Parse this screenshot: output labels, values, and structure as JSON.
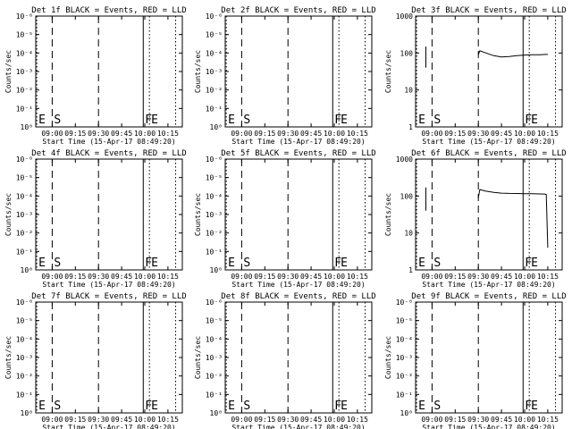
{
  "chart_data": [
    {
      "type": "line",
      "title": "Det 1f BLACK = Events, RED = LLD",
      "ylabel": "Counts/sec",
      "xlabel": "Start Time (15-Apr-17 08:49:20)",
      "x_ticks": [
        "09:00",
        "09:15",
        "09:30",
        "09:45",
        "10:00",
        "10:15"
      ],
      "y_scale": "log",
      "y_ticks": [
        "10⁰",
        "10⁻¹",
        "10⁻²",
        "10⁻³",
        "10⁻⁴",
        "10⁻⁵",
        "10⁻⁶"
      ],
      "markers": [
        {
          "label": "E",
          "time": "08:50",
          "style": "dotted"
        },
        {
          "label": "S",
          "time": "09:00",
          "style": "dashed"
        },
        {
          "label": "",
          "time": "09:30",
          "style": "dashed"
        },
        {
          "label": "F",
          "time": "09:59",
          "style": "solid"
        },
        {
          "label": "E",
          "time": "10:03",
          "style": "dotted"
        },
        {
          "label": "",
          "time": "10:20",
          "style": "dotted"
        }
      ],
      "series": []
    },
    {
      "type": "line",
      "title": "Det 2f BLACK = Events, RED = LLD",
      "ylabel": "Counts/sec",
      "xlabel": "Start Time (15-Apr-17 08:49:20)",
      "x_ticks": [
        "09:00",
        "09:15",
        "09:30",
        "09:45",
        "10:00",
        "10:15"
      ],
      "y_scale": "log",
      "y_ticks": [
        "10⁰",
        "10⁻¹",
        "10⁻²",
        "10⁻³",
        "10⁻⁴",
        "10⁻⁵",
        "10⁻⁶"
      ],
      "markers": [
        {
          "label": "E",
          "time": "08:50",
          "style": "dotted"
        },
        {
          "label": "S",
          "time": "09:00",
          "style": "dashed"
        },
        {
          "label": "",
          "time": "09:30",
          "style": "dashed"
        },
        {
          "label": "F",
          "time": "09:59",
          "style": "solid"
        },
        {
          "label": "E",
          "time": "10:03",
          "style": "dotted"
        },
        {
          "label": "",
          "time": "10:20",
          "style": "dotted"
        }
      ],
      "series": []
    },
    {
      "type": "line",
      "title": "Det 3f BLACK = Events, RED = LLD",
      "ylabel": "Counts/sec",
      "xlabel": "Start Time (15-Apr-17 08:49:20)",
      "x_ticks": [
        "09:00",
        "09:15",
        "09:30",
        "09:45",
        "10:00",
        "10:15"
      ],
      "y_scale": "log",
      "y_ticks": [
        "1",
        "10",
        "100",
        "1000"
      ],
      "markers": [
        {
          "label": "E",
          "time": "08:50",
          "style": "dotted"
        },
        {
          "label": "S",
          "time": "09:00",
          "style": "dashed"
        },
        {
          "label": "",
          "time": "09:30",
          "style": "dashed"
        },
        {
          "label": "F",
          "time": "09:59",
          "style": "solid"
        },
        {
          "label": "E",
          "time": "10:03",
          "style": "dotted"
        },
        {
          "label": "",
          "time": "10:20",
          "style": "dotted"
        }
      ],
      "series": [
        {
          "values": [
            [
              "08:56",
              40
            ],
            [
              "08:56",
              150
            ],
            [
              "08:56",
              90
            ]
          ]
        },
        {
          "values": [
            [
              "09:30",
              90
            ],
            [
              "09:31",
              115
            ],
            [
              "09:35",
              100
            ],
            [
              "09:40",
              85
            ],
            [
              "09:45",
              78
            ],
            [
              "09:50",
              80
            ],
            [
              "09:55",
              85
            ],
            [
              "10:00",
              88
            ],
            [
              "10:05",
              90
            ],
            [
              "10:10",
              90
            ],
            [
              "10:15",
              92
            ]
          ]
        }
      ]
    },
    {
      "type": "line",
      "title": "Det 4f BLACK = Events, RED = LLD",
      "ylabel": "Counts/sec",
      "xlabel": "Start Time (15-Apr-17 08:49:20)",
      "x_ticks": [
        "09:00",
        "09:15",
        "09:30",
        "09:45",
        "10:00",
        "10:15"
      ],
      "y_scale": "log",
      "y_ticks": [
        "10⁰",
        "10⁻¹",
        "10⁻²",
        "10⁻³",
        "10⁻⁴",
        "10⁻⁵",
        "10⁻⁶"
      ],
      "markers": [
        {
          "label": "E",
          "time": "08:50",
          "style": "dotted"
        },
        {
          "label": "S",
          "time": "09:00",
          "style": "dashed"
        },
        {
          "label": "",
          "time": "09:30",
          "style": "dashed"
        },
        {
          "label": "F",
          "time": "09:59",
          "style": "solid"
        },
        {
          "label": "E",
          "time": "10:03",
          "style": "dotted"
        },
        {
          "label": "",
          "time": "10:20",
          "style": "dotted"
        }
      ],
      "series": []
    },
    {
      "type": "line",
      "title": "Det 5f BLACK = Events, RED = LLD",
      "ylabel": "Counts/sec",
      "xlabel": "Start Time (15-Apr-17 08:49:20)",
      "x_ticks": [
        "09:00",
        "09:15",
        "09:30",
        "09:45",
        "10:00",
        "10:15"
      ],
      "y_scale": "log",
      "y_ticks": [
        "10⁰",
        "10⁻¹",
        "10⁻²",
        "10⁻³",
        "10⁻⁴",
        "10⁻⁵",
        "10⁻⁶"
      ],
      "markers": [
        {
          "label": "E",
          "time": "08:50",
          "style": "dotted"
        },
        {
          "label": "S",
          "time": "09:00",
          "style": "dashed"
        },
        {
          "label": "",
          "time": "09:30",
          "style": "dashed"
        },
        {
          "label": "F",
          "time": "09:59",
          "style": "solid"
        },
        {
          "label": "E",
          "time": "10:03",
          "style": "dotted"
        },
        {
          "label": "",
          "time": "10:20",
          "style": "dotted"
        }
      ],
      "series": []
    },
    {
      "type": "line",
      "title": "Det 6f BLACK = Events, RED = LLD",
      "ylabel": "Counts/sec",
      "xlabel": "Start Time (15-Apr-17 08:49:20)",
      "x_ticks": [
        "09:00",
        "09:15",
        "09:30",
        "09:45",
        "10:00",
        "10:15"
      ],
      "y_scale": "log",
      "y_ticks": [
        "1",
        "10",
        "100",
        "1000"
      ],
      "markers": [
        {
          "label": "E",
          "time": "08:50",
          "style": "dotted"
        },
        {
          "label": "S",
          "time": "09:00",
          "style": "dashed"
        },
        {
          "label": "",
          "time": "09:30",
          "style": "dashed"
        },
        {
          "label": "F",
          "time": "09:59",
          "style": "solid"
        },
        {
          "label": "E",
          "time": "10:03",
          "style": "dotted"
        },
        {
          "label": "",
          "time": "10:20",
          "style": "dotted"
        }
      ],
      "series": [
        {
          "values": [
            [
              "08:56",
              40
            ],
            [
              "08:56",
              170
            ],
            [
              "08:56",
              90
            ]
          ]
        },
        {
          "values": [
            [
              "09:30",
              90
            ],
            [
              "09:31",
              150
            ],
            [
              "09:35",
              135
            ],
            [
              "09:40",
              125
            ],
            [
              "09:45",
              120
            ],
            [
              "09:50",
              118
            ],
            [
              "09:55",
              117
            ],
            [
              "10:00",
              116
            ],
            [
              "10:05",
              115
            ],
            [
              "10:10",
              114
            ],
            [
              "10:13",
              113
            ],
            [
              "10:14",
              110
            ],
            [
              "10:15",
              4
            ]
          ]
        }
      ]
    },
    {
      "type": "line",
      "title": "Det 7f BLACK = Events, RED = LLD",
      "ylabel": "Counts/sec",
      "xlabel": "Start Time (15-Apr-17 08:49:20)",
      "x_ticks": [
        "09:00",
        "09:15",
        "09:30",
        "09:45",
        "10:00",
        "10:15"
      ],
      "y_scale": "log",
      "y_ticks": [
        "10⁰",
        "10⁻¹",
        "10⁻²",
        "10⁻³",
        "10⁻⁴",
        "10⁻⁵",
        "10⁻⁶"
      ],
      "markers": [
        {
          "label": "E",
          "time": "08:50",
          "style": "dotted"
        },
        {
          "label": "S",
          "time": "09:00",
          "style": "dashed"
        },
        {
          "label": "",
          "time": "09:30",
          "style": "dashed"
        },
        {
          "label": "F",
          "time": "09:59",
          "style": "solid"
        },
        {
          "label": "E",
          "time": "10:03",
          "style": "dotted"
        },
        {
          "label": "",
          "time": "10:20",
          "style": "dotted"
        }
      ],
      "series": []
    },
    {
      "type": "line",
      "title": "Det 8f BLACK = Events, RED = LLD",
      "ylabel": "Counts/sec",
      "xlabel": "Start Time (15-Apr-17 08:49:20)",
      "x_ticks": [
        "09:00",
        "09:15",
        "09:30",
        "09:45",
        "10:00",
        "10:15"
      ],
      "y_scale": "log",
      "y_ticks": [
        "10⁰",
        "10⁻¹",
        "10⁻²",
        "10⁻³",
        "10⁻⁴",
        "10⁻⁵",
        "10⁻⁶"
      ],
      "markers": [
        {
          "label": "E",
          "time": "08:50",
          "style": "dotted"
        },
        {
          "label": "S",
          "time": "09:00",
          "style": "dashed"
        },
        {
          "label": "",
          "time": "09:30",
          "style": "dashed"
        },
        {
          "label": "F",
          "time": "09:59",
          "style": "solid"
        },
        {
          "label": "E",
          "time": "10:03",
          "style": "dotted"
        },
        {
          "label": "",
          "time": "10:20",
          "style": "dotted"
        }
      ],
      "series": []
    },
    {
      "type": "line",
      "title": "Det 9f BLACK = Events, RED = LLD",
      "ylabel": "Counts/sec",
      "xlabel": "Start Time (15-Apr-17 08:49:20)",
      "x_ticks": [
        "09:00",
        "09:15",
        "09:30",
        "09:45",
        "10:00",
        "10:15"
      ],
      "y_scale": "log",
      "y_ticks": [
        "10⁰",
        "10⁻¹",
        "10⁻²",
        "10⁻³",
        "10⁻⁴",
        "10⁻⁵",
        "10⁻⁶"
      ],
      "markers": [
        {
          "label": "E",
          "time": "08:50",
          "style": "dotted"
        },
        {
          "label": "S",
          "time": "09:00",
          "style": "dashed"
        },
        {
          "label": "",
          "time": "09:30",
          "style": "dashed"
        },
        {
          "label": "F",
          "time": "09:59",
          "style": "solid"
        },
        {
          "label": "E",
          "time": "10:03",
          "style": "dotted"
        },
        {
          "label": "",
          "time": "10:20",
          "style": "dotted"
        }
      ],
      "series": []
    }
  ]
}
